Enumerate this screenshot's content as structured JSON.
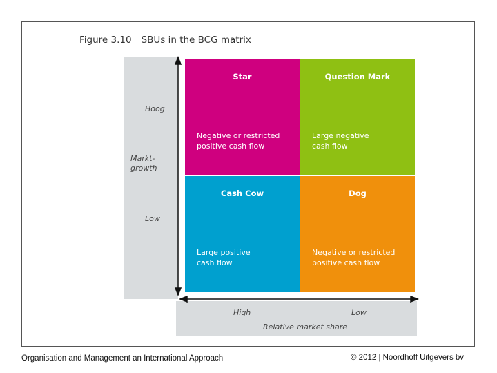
{
  "figure": {
    "number": "Figure 3.10",
    "title": "SBUs in the BCG matrix"
  },
  "y_axis": {
    "label": "Markt-\ngrowth",
    "high": "Hoog",
    "low": "Low"
  },
  "x_axis": {
    "label": "Relative market share",
    "high": "High",
    "low": "Low"
  },
  "quadrants": [
    {
      "title": "Star",
      "description": "Negative or restricted\npositive cash flow",
      "color": "#cf007f"
    },
    {
      "title": "Question Mark",
      "description": "Large negative\ncash flow",
      "color": "#8fc013"
    },
    {
      "title": "Cash Cow",
      "description": "Large positive\ncash flow",
      "color": "#00a0cf"
    },
    {
      "title": "Dog",
      "description": "Negative or restricted\npositive cash flow",
      "color": "#f0900c"
    }
  ],
  "footer": {
    "left": "Organisation and Management an International Approach",
    "right": "© 2012 | Noordhoff Uitgevers bv"
  }
}
